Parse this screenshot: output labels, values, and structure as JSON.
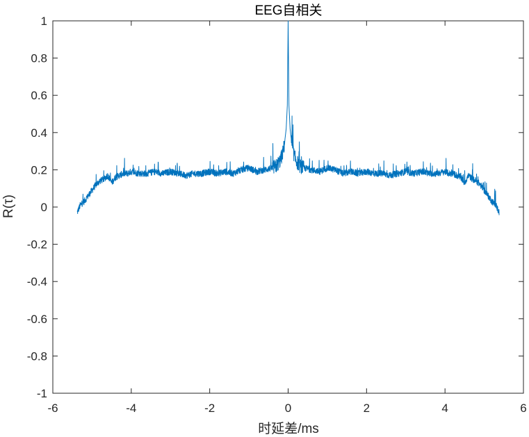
{
  "chart_data": {
    "type": "line",
    "title": "EEG自相关",
    "xlabel": "时延差/ms",
    "ylabel": "R(τ)",
    "xlim": [
      -6,
      6
    ],
    "ylim": [
      -1,
      1
    ],
    "xticks": [
      -6,
      -4,
      -2,
      0,
      2,
      4,
      6
    ],
    "xtick_labels": [
      "-6",
      "-4",
      "-2",
      "0",
      "2",
      "4",
      "6"
    ],
    "yticks": [
      -1,
      -0.8,
      -0.6,
      -0.4,
      -0.2,
      0,
      0.2,
      0.4,
      0.6,
      0.8,
      1
    ],
    "ytick_labels": [
      "-1",
      "-0.8",
      "-0.6",
      "-0.4",
      "-0.2",
      "0",
      "0.2",
      "0.4",
      "0.6",
      "0.8",
      "1"
    ],
    "grid": false,
    "color": "#0072BD",
    "series": [
      {
        "x": [
          -5.38,
          -5.3,
          -5.2,
          -5.1,
          -5.0,
          -4.9,
          -4.8,
          -4.7,
          -4.6,
          -4.5,
          -4.4,
          -4.3,
          -4.2,
          -4.1,
          -4.0,
          -3.8,
          -3.6,
          -3.4,
          -3.2,
          -3.0,
          -2.8,
          -2.6,
          -2.4,
          -2.2,
          -2.0,
          -1.8,
          -1.6,
          -1.4,
          -1.2,
          -1.0,
          -0.8,
          -0.6,
          -0.4,
          -0.3,
          -0.2,
          -0.15,
          -0.1,
          -0.05,
          -0.02,
          0.0,
          0.02,
          0.05,
          0.1,
          0.15,
          0.2,
          0.3,
          0.4,
          0.6,
          0.8,
          1.0,
          1.2,
          1.4,
          1.6,
          1.8,
          2.0,
          2.2,
          2.4,
          2.6,
          2.8,
          3.0,
          3.2,
          3.4,
          3.6,
          3.8,
          4.0,
          4.1,
          4.2,
          4.3,
          4.4,
          4.5,
          4.6,
          4.7,
          4.8,
          4.9,
          5.0,
          5.1,
          5.2,
          5.3,
          5.38
        ],
        "y": [
          -0.03,
          0.01,
          0.03,
          0.06,
          0.09,
          0.12,
          0.14,
          0.15,
          0.17,
          0.13,
          0.16,
          0.17,
          0.18,
          0.18,
          0.19,
          0.18,
          0.18,
          0.19,
          0.18,
          0.19,
          0.18,
          0.17,
          0.18,
          0.18,
          0.19,
          0.18,
          0.19,
          0.18,
          0.2,
          0.21,
          0.19,
          0.2,
          0.21,
          0.22,
          0.25,
          0.28,
          0.33,
          0.42,
          0.55,
          1.0,
          0.55,
          0.42,
          0.33,
          0.28,
          0.25,
          0.22,
          0.21,
          0.2,
          0.19,
          0.21,
          0.2,
          0.18,
          0.19,
          0.18,
          0.19,
          0.18,
          0.18,
          0.17,
          0.18,
          0.19,
          0.18,
          0.19,
          0.18,
          0.18,
          0.19,
          0.18,
          0.18,
          0.17,
          0.16,
          0.13,
          0.17,
          0.15,
          0.14,
          0.12,
          0.09,
          0.06,
          0.03,
          0.01,
          -0.03
        ]
      }
    ]
  }
}
